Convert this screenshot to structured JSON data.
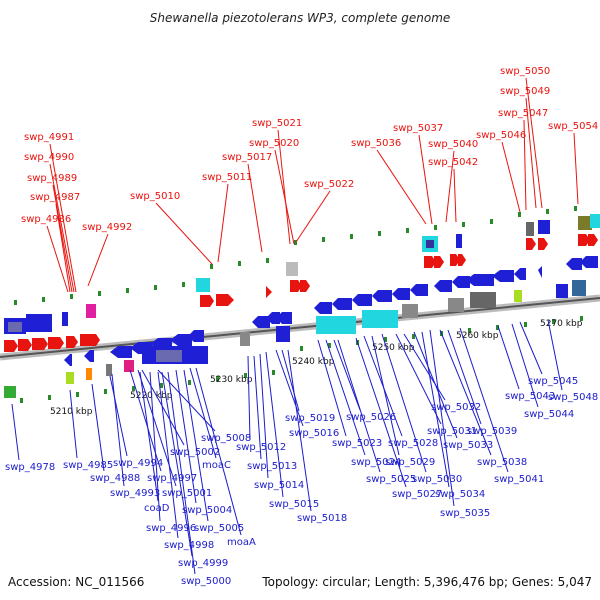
{
  "title": "Shewanella piezotolerans WP3, complete genome",
  "footer": {
    "accession": "Accession: NC_011566",
    "summary": "Topology: circular; Length: 5,396,476 bp; Genes: 5,047"
  },
  "scale_labels": [
    "5210 kbp",
    "5220 kbp",
    "5230 kbp",
    "5240 kbp",
    "5250 kbp",
    "5260 kbp",
    "5270 kbp"
  ],
  "top_labels": [
    "swp_4991",
    "swp_4990",
    "swp_4989",
    "swp_4987",
    "swp_4986",
    "swp_4992",
    "swp_5010",
    "swp_5011",
    "swp_5017",
    "swp_5021",
    "swp_5020",
    "swp_5022",
    "swp_5036",
    "swp_5037",
    "swp_5040",
    "swp_5042",
    "swp_5046",
    "swp_5047",
    "swp_5049",
    "swp_5050",
    "swp_5054"
  ],
  "bottom_labels": [
    "swp_4978",
    "swp_4985",
    "swp_4988",
    "swp_4994",
    "swp_4993",
    "coaD",
    "swp_4996",
    "swp_4998",
    "swp_4999",
    "swp_5000",
    "swp_4997",
    "swp_5001",
    "swp_5002",
    "swp_5008",
    "swp_5004",
    "swp_5005",
    "moaC",
    "moaA",
    "swp_5012",
    "swp_5013",
    "swp_5014",
    "swp_5015",
    "swp_5016",
    "swp_5019",
    "swp_5018",
    "swp_5023",
    "swp_5024",
    "swp_5025",
    "swp_5026",
    "swp_5027",
    "swp_5028",
    "swp_5029",
    "swp_5030",
    "swp_5031",
    "swp_5032",
    "swp_5033",
    "swp_5034",
    "swp_5035",
    "swp_5038",
    "swp_5039",
    "swp_5041",
    "swp_5043",
    "swp_5044",
    "swp_5045",
    "swp_5048"
  ]
}
